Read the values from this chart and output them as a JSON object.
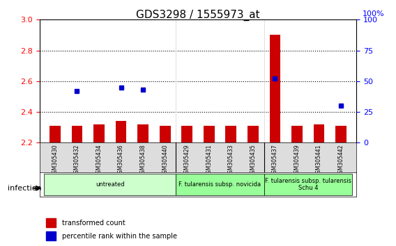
{
  "title": "GDS3298 / 1555973_at",
  "samples": [
    "GSM305430",
    "GSM305432",
    "GSM305434",
    "GSM305436",
    "GSM305438",
    "GSM305440",
    "GSM305429",
    "GSM305431",
    "GSM305433",
    "GSM305435",
    "GSM305437",
    "GSM305439",
    "GSM305441",
    "GSM305442"
  ],
  "bar_values": [
    2.31,
    2.31,
    2.32,
    2.34,
    2.32,
    2.31,
    2.31,
    2.31,
    2.31,
    2.31,
    2.9,
    2.31,
    2.32,
    2.31
  ],
  "dot_values": [
    null,
    42,
    null,
    45,
    43,
    null,
    null,
    null,
    null,
    null,
    52,
    null,
    null,
    30
  ],
  "ylim_left": [
    2.2,
    3.0
  ],
  "ylim_right": [
    0,
    100
  ],
  "yticks_left": [
    2.2,
    2.4,
    2.6,
    2.8,
    3.0
  ],
  "yticks_right": [
    0,
    25,
    50,
    75,
    100
  ],
  "bar_color": "#cc0000",
  "dot_color": "#0000cc",
  "bar_bottom": 2.2,
  "groups": [
    {
      "label": "untreated",
      "start": 0,
      "end": 6,
      "color": "#ccffcc"
    },
    {
      "label": "F. tularensis subsp. novicida",
      "start": 6,
      "end": 10,
      "color": "#99ff99"
    },
    {
      "label": "F. tularensis subsp. tularensis\nSchu 4",
      "start": 10,
      "end": 14,
      "color": "#99ff99"
    }
  ],
  "infection_label": "infection",
  "legend_bar_label": "transformed count",
  "legend_dot_label": "percentile rank within the sample",
  "grid_color": "#000000",
  "background_color": "#ffffff",
  "plot_bg": "#ffffff",
  "tick_area_bg": "#cccccc"
}
